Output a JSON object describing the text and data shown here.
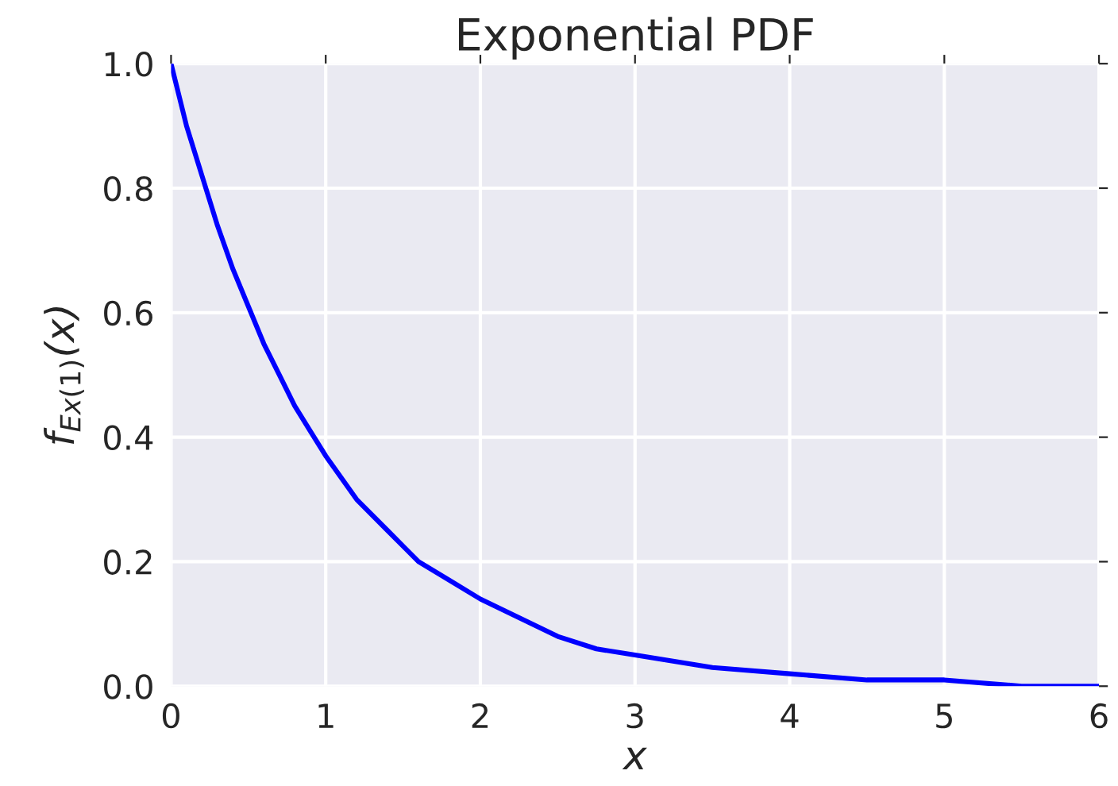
{
  "chart_data": {
    "type": "line",
    "title": "Exponential PDF",
    "xlabel": "x",
    "ylabel": "f$_{Ex(1)}$(x)",
    "x": [
      0,
      0.1,
      0.2,
      0.3,
      0.4,
      0.5,
      0.6,
      0.7,
      0.8,
      0.9,
      1.0,
      1.2,
      1.4,
      1.6,
      1.8,
      2.0,
      2.25,
      2.5,
      2.75,
      3.0,
      3.5,
      4.0,
      4.5,
      5.0,
      5.5,
      6.0
    ],
    "series": [
      {
        "color": "#0000ff",
        "values": [
          1.0,
          0.9,
          0.82,
          0.74,
          0.67,
          0.61,
          0.55,
          0.5,
          0.45,
          0.41,
          0.37,
          0.3,
          0.25,
          0.2,
          0.17,
          0.14,
          0.11,
          0.08,
          0.06,
          0.05,
          0.03,
          0.02,
          0.01,
          0.01,
          0.0,
          0.0
        ]
      }
    ],
    "xlim": [
      0,
      6
    ],
    "ylim": [
      0,
      1
    ],
    "xticks": [
      0,
      1,
      2,
      3,
      4,
      5,
      6
    ],
    "yticks": [
      {
        "value": 0,
        "label": "0.0"
      },
      {
        "value": 0.2,
        "label": "0.2"
      },
      {
        "value": 0.4,
        "label": "0.4"
      },
      {
        "value": 0.6,
        "label": "0.6"
      },
      {
        "value": 0.8,
        "label": "0.8"
      },
      {
        "value": 1,
        "label": "1.0"
      }
    ],
    "grid": true,
    "line_style": "solid",
    "marker": "none"
  }
}
